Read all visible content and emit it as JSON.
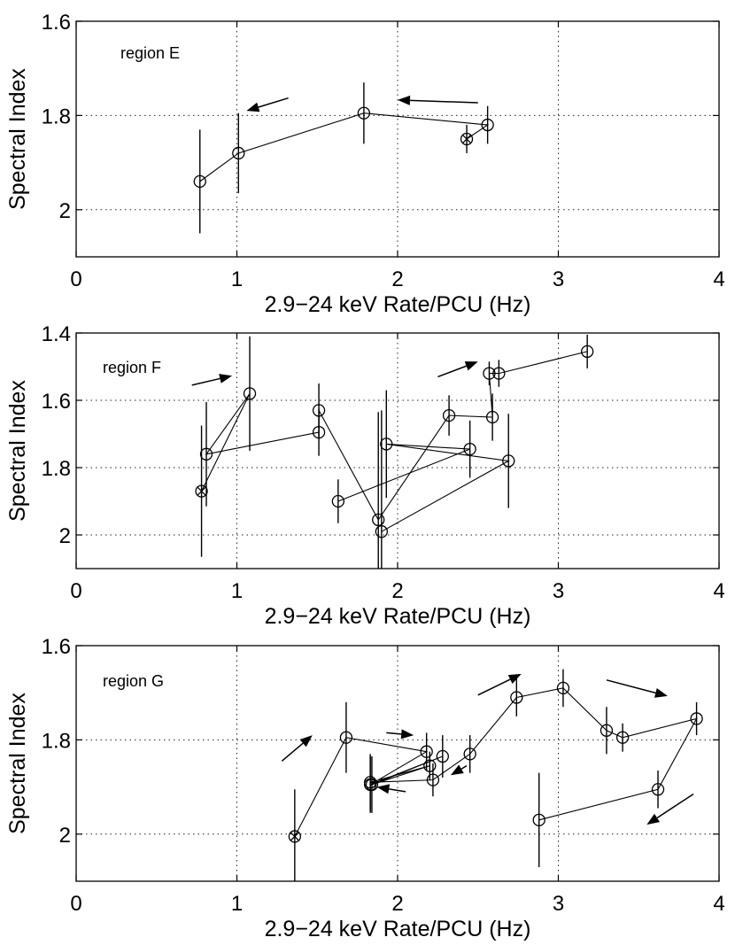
{
  "chart_data": [
    {
      "type": "scatter",
      "annotation": "region E",
      "xlabel": "2.9−24 keV Rate/PCU (Hz)",
      "ylabel": "Spectral Index",
      "xlim": [
        0,
        4
      ],
      "ylim": [
        2.1,
        1.6
      ],
      "y_axis_inverted": true,
      "grid": "dotted",
      "xticks": [
        "0",
        "1",
        "2",
        "3",
        "4"
      ],
      "yticks": [
        "1.6",
        "1.8",
        "2"
      ],
      "ytick_values": [
        1.6,
        1.8,
        2.0
      ],
      "points": [
        {
          "x": 0.77,
          "y": 1.94,
          "err": 0.11,
          "marker": "circle"
        },
        {
          "x": 1.01,
          "y": 1.88,
          "err": 0.085,
          "marker": "circle"
        },
        {
          "x": 1.79,
          "y": 1.795,
          "err": 0.065,
          "marker": "circle"
        },
        {
          "x": 2.56,
          "y": 1.82,
          "err": 0.04,
          "marker": "circle"
        },
        {
          "x": 2.43,
          "y": 1.85,
          "err": 0.03,
          "marker": "crossed-circle"
        }
      ],
      "path": [
        0,
        1,
        2,
        3,
        4
      ],
      "arrows": [
        {
          "from": [
            1.32,
            1.763
          ],
          "to": [
            1.06,
            1.79
          ]
        },
        {
          "from": [
            2.5,
            1.773
          ],
          "to": [
            2.0,
            1.767
          ]
        }
      ]
    },
    {
      "type": "scatter",
      "annotation": "region F",
      "xlabel": "2.9−24 keV Rate/PCU (Hz)",
      "ylabel": "Spectral Index",
      "xlim": [
        0,
        4
      ],
      "ylim": [
        2.1,
        1.4
      ],
      "y_axis_inverted": true,
      "grid": "dotted",
      "xticks": [
        "0",
        "1",
        "2",
        "3",
        "4"
      ],
      "yticks": [
        "1.4",
        "1.6",
        "1.8",
        "2"
      ],
      "ytick_values": [
        1.4,
        1.6,
        1.8,
        2.0
      ],
      "points": [
        {
          "x": 0.78,
          "y": 1.87,
          "err": 0.195,
          "marker": "crossed-circle"
        },
        {
          "x": 0.81,
          "y": 1.76,
          "err": 0.155,
          "marker": "circle"
        },
        {
          "x": 1.08,
          "y": 1.58,
          "err": 0.17,
          "marker": "circle"
        },
        {
          "x": 1.51,
          "y": 1.63,
          "err": 0.08,
          "marker": "circle"
        },
        {
          "x": 1.51,
          "y": 1.695,
          "err": 0.07,
          "marker": "circle"
        },
        {
          "x": 1.63,
          "y": 1.9,
          "err": 0.065,
          "marker": "circle"
        },
        {
          "x": 1.88,
          "y": 1.955,
          "err": 0.32,
          "marker": "circle"
        },
        {
          "x": 1.9,
          "y": 1.99,
          "err": 0.36,
          "marker": "circle"
        },
        {
          "x": 1.93,
          "y": 1.73,
          "err": 0.16,
          "marker": "circle"
        },
        {
          "x": 2.32,
          "y": 1.645,
          "err": 0.06,
          "marker": "circle"
        },
        {
          "x": 2.45,
          "y": 1.745,
          "err": 0.085,
          "marker": "circle"
        },
        {
          "x": 2.69,
          "y": 1.78,
          "err": 0.14,
          "marker": "circle"
        },
        {
          "x": 2.57,
          "y": 1.52,
          "err": 0.035,
          "marker": "circle"
        },
        {
          "x": 2.59,
          "y": 1.65,
          "err": 0.07,
          "marker": "circle"
        },
        {
          "x": 2.63,
          "y": 1.52,
          "err": 0.04,
          "marker": "circle"
        },
        {
          "x": 3.18,
          "y": 1.455,
          "err": 0.05,
          "marker": "circle"
        }
      ],
      "path": [
        0,
        2,
        1,
        4,
        3,
        6,
        9,
        13,
        12,
        14,
        15
      ],
      "path2": [
        5,
        10,
        8,
        11,
        7
      ],
      "arrows": [
        {
          "from": [
            0.72,
            1.555
          ],
          "to": [
            0.97,
            1.527
          ]
        },
        {
          "from": [
            2.25,
            1.53
          ],
          "to": [
            2.5,
            1.485
          ]
        }
      ]
    },
    {
      "type": "scatter",
      "annotation": "region G",
      "xlabel": "2.9−24 keV Rate/PCU (Hz)",
      "ylabel": "Spectral Index",
      "xlim": [
        0,
        4
      ],
      "ylim": [
        2.1,
        1.6
      ],
      "y_axis_inverted": true,
      "grid": "dotted",
      "xticks": [
        "0",
        "1",
        "2",
        "3",
        "4"
      ],
      "yticks": [
        "1.6",
        "1.8",
        "2"
      ],
      "ytick_values": [
        1.6,
        1.8,
        2.0
      ],
      "points": [
        {
          "x": 1.36,
          "y": 2.005,
          "err": 0.1,
          "marker": "crossed-circle"
        },
        {
          "x": 1.68,
          "y": 1.795,
          "err": 0.075,
          "marker": "circle"
        },
        {
          "x": 2.18,
          "y": 1.825,
          "err": 0.04,
          "marker": "circle"
        },
        {
          "x": 1.83,
          "y": 1.895,
          "err": 0.06,
          "marker": "circle"
        },
        {
          "x": 2.28,
          "y": 1.835,
          "err": 0.045,
          "marker": "circle"
        },
        {
          "x": 1.84,
          "y": 1.895,
          "err": 0.06,
          "marker": "circle"
        },
        {
          "x": 2.2,
          "y": 1.855,
          "err": 0.03,
          "marker": "circle"
        },
        {
          "x": 1.83,
          "y": 1.89,
          "err": 0.06,
          "marker": "circle"
        },
        {
          "x": 2.22,
          "y": 1.885,
          "err": 0.035,
          "marker": "circle"
        },
        {
          "x": 2.45,
          "y": 1.83,
          "err": 0.04,
          "marker": "circle"
        },
        {
          "x": 2.74,
          "y": 1.71,
          "err": 0.04,
          "marker": "circle"
        },
        {
          "x": 3.03,
          "y": 1.69,
          "err": 0.04,
          "marker": "circle"
        },
        {
          "x": 3.3,
          "y": 1.78,
          "err": 0.05,
          "marker": "circle"
        },
        {
          "x": 3.4,
          "y": 1.795,
          "err": 0.03,
          "marker": "circle"
        },
        {
          "x": 3.86,
          "y": 1.755,
          "err": 0.035,
          "marker": "circle"
        },
        {
          "x": 3.62,
          "y": 1.905,
          "err": 0.04,
          "marker": "circle"
        },
        {
          "x": 2.88,
          "y": 1.97,
          "err": 0.1,
          "marker": "circle"
        }
      ],
      "path": [
        0,
        1,
        2,
        3,
        4,
        5,
        6,
        7,
        8,
        9,
        10,
        11,
        12,
        13,
        14,
        15,
        16
      ],
      "arrows": [
        {
          "from": [
            1.28,
            1.845
          ],
          "to": [
            1.47,
            1.79
          ]
        },
        {
          "from": [
            1.93,
            1.785
          ],
          "to": [
            2.1,
            1.79
          ]
        },
        {
          "from": [
            2.05,
            1.91
          ],
          "to": [
            1.87,
            1.9
          ]
        },
        {
          "from": [
            2.43,
            1.855
          ],
          "to": [
            2.33,
            1.875
          ]
        },
        {
          "from": [
            2.5,
            1.705
          ],
          "to": [
            2.77,
            1.66
          ]
        },
        {
          "from": [
            3.3,
            1.673
          ],
          "to": [
            3.68,
            1.707
          ]
        },
        {
          "from": [
            3.84,
            1.915
          ],
          "to": [
            3.55,
            1.98
          ]
        }
      ]
    }
  ]
}
